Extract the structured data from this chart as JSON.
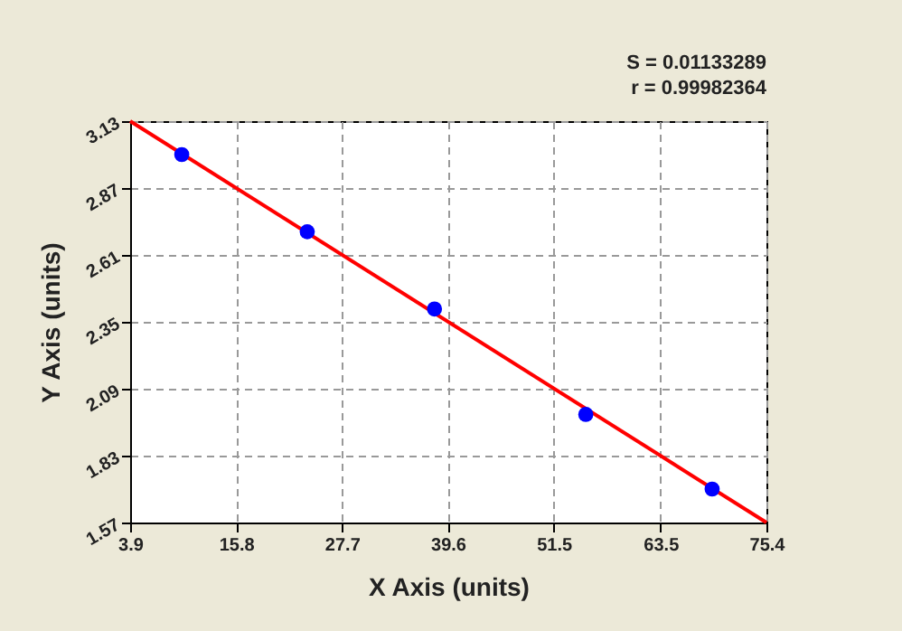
{
  "chart_data": {
    "type": "scatter",
    "xlabel": "X Axis (units)",
    "ylabel": "Y Axis (units)",
    "annotations": [
      "S = 0.01133289",
      "r = 0.99982364"
    ],
    "series": [
      {
        "type": "scatter",
        "color": "#0000ff",
        "x": [
          9.7,
          23.8,
          38.1,
          55.1,
          69.3
        ],
        "values": [
          3.0,
          2.7,
          2.4,
          1.99,
          1.7
        ],
        "marker": "circle"
      },
      {
        "type": "line",
        "color": "#ff0000",
        "x": [
          3.9,
          75.4
        ],
        "values": [
          3.13,
          1.57
        ],
        "line_style": "solid"
      }
    ],
    "xlim": [
      3.9,
      75.4
    ],
    "xticks": [
      3.9,
      15.8,
      27.7,
      39.6,
      51.5,
      63.5,
      75.4
    ],
    "ylim": [
      1.57,
      3.13
    ],
    "yticks": [
      1.57,
      1.83,
      2.09,
      2.35,
      2.61,
      2.87,
      3.13
    ],
    "grid": true
  }
}
